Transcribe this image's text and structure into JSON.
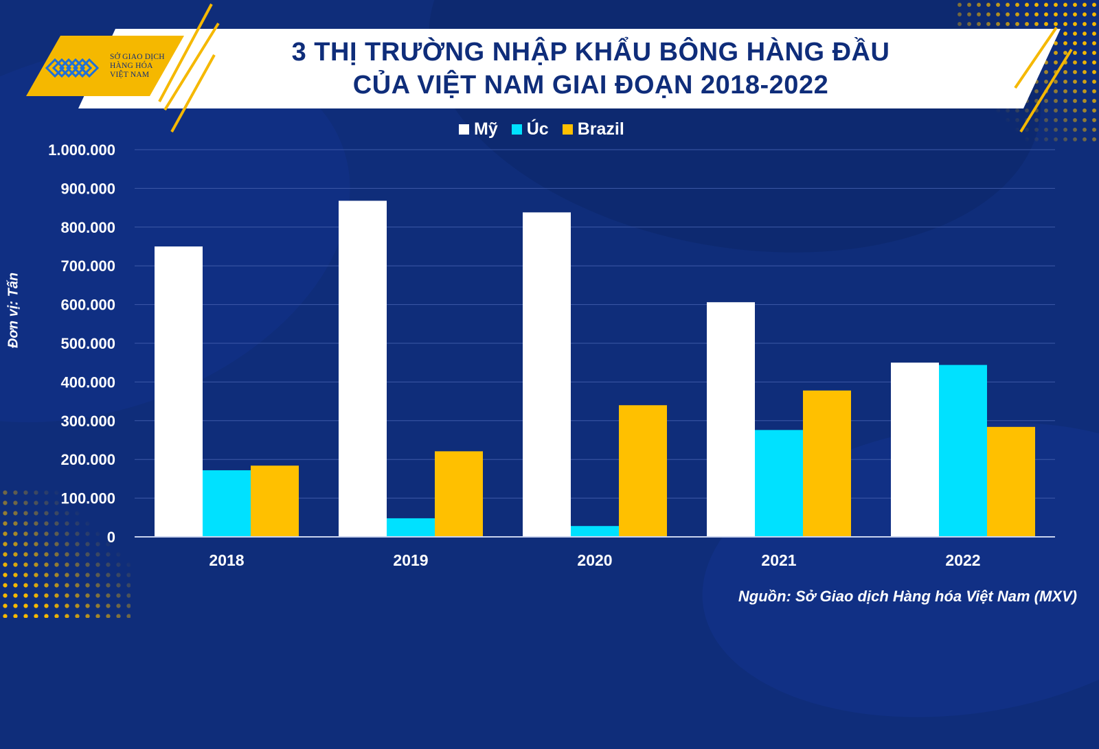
{
  "header": {
    "title_line1": "3 THỊ TRƯỜNG NHẬP KHẨU BÔNG HÀNG ĐẦU",
    "title_line2": "CỦA VIỆT NAM GIAI ĐOẠN 2018-2022"
  },
  "logo": {
    "line1": "SỞ GIAO DỊCH",
    "line2": "HÀNG HÓA",
    "line3": "VIỆT NAM"
  },
  "footer": {
    "source": "Nguồn: Sở Giao dịch Hàng hóa Việt Nam (MXV)"
  },
  "colors": {
    "background": "#0f2d7a",
    "title_text": "#0f2d7a",
    "accent_gold": "#f5b800",
    "my": "#ffffff",
    "uc": "#00e1ff",
    "brazil": "#ffc000",
    "grid": "#3e5aa8"
  },
  "chart_data": {
    "type": "bar",
    "title": "3 THỊ TRƯỜNG NHẬP KHẨU BÔNG HÀNG ĐẦU CỦA VIỆT NAM GIAI ĐOẠN 2018-2022",
    "xlabel": "",
    "ylabel": "Đơn vị: Tấn",
    "categories": [
      "2018",
      "2019",
      "2020",
      "2021",
      "2022"
    ],
    "series": [
      {
        "name": "Mỹ",
        "color": "#ffffff",
        "values": [
          750000,
          868000,
          838000,
          606000,
          450000
        ]
      },
      {
        "name": "Úc",
        "color": "#00e1ff",
        "values": [
          172000,
          48000,
          28000,
          276000,
          444000
        ]
      },
      {
        "name": "Brazil",
        "color": "#ffc000",
        "values": [
          184000,
          221000,
          340000,
          378000,
          284000
        ]
      }
    ],
    "ylim": [
      0,
      1000000
    ],
    "yticks": [
      0,
      100000,
      200000,
      300000,
      400000,
      500000,
      600000,
      700000,
      800000,
      900000,
      1000000
    ],
    "ytick_labels": [
      "0",
      "100.000",
      "200.000",
      "300.000",
      "400.000",
      "500.000",
      "600.000",
      "700.000",
      "800.000",
      "900.000",
      "1.000.000"
    ],
    "grid": true,
    "legend_position": "top-center"
  }
}
